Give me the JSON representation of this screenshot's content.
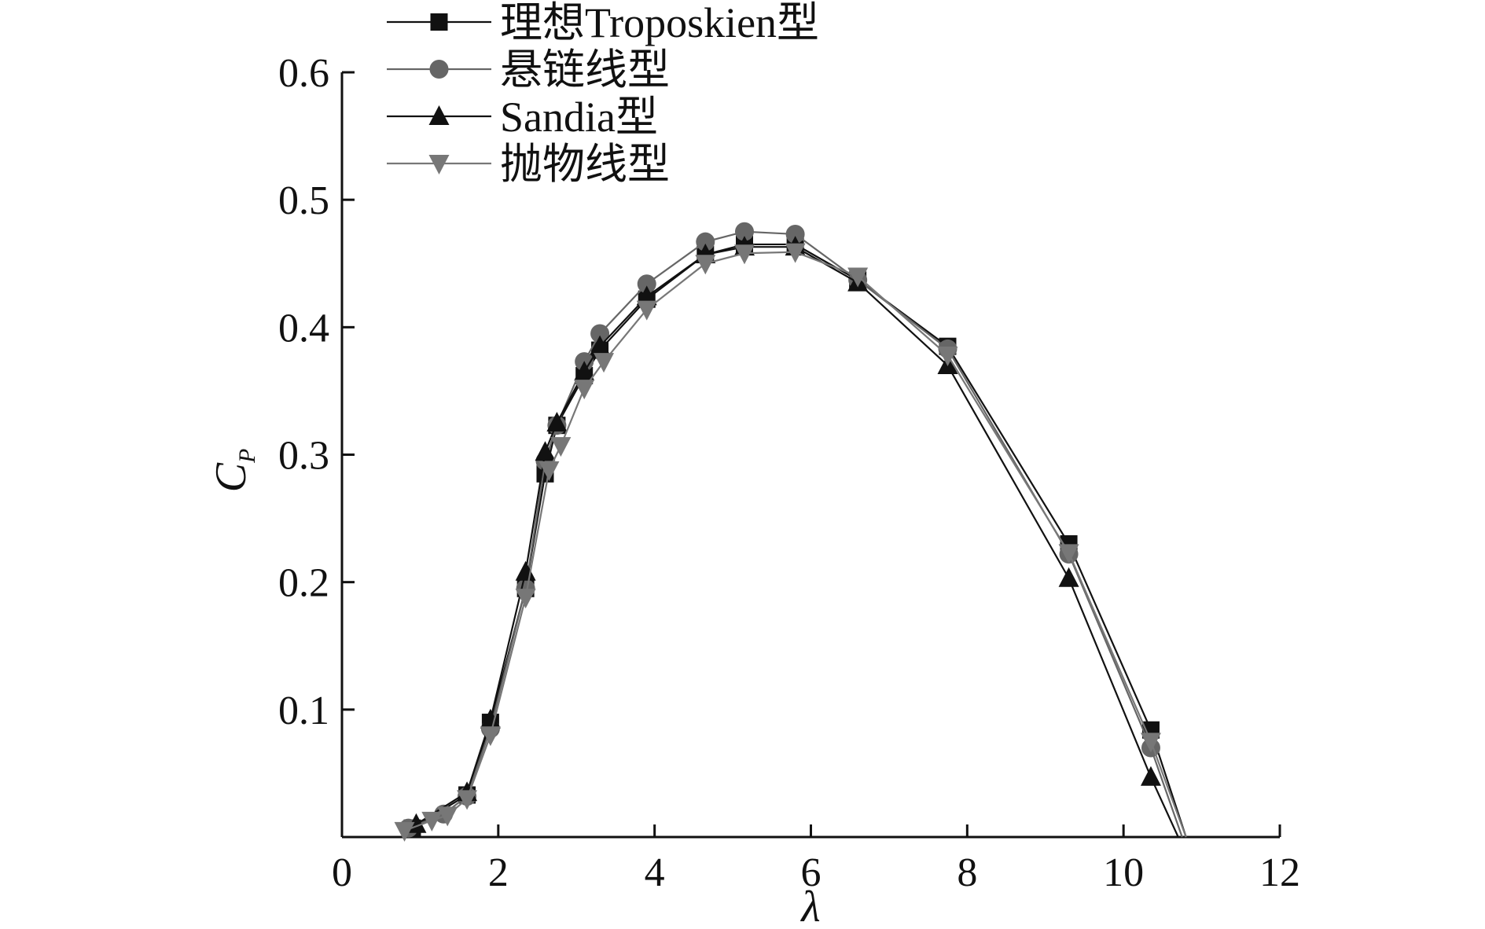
{
  "chart_data": {
    "type": "line",
    "xlabel": "λ",
    "ylabel": "C",
    "ylabel_sub": "P",
    "xlim": [
      0,
      12
    ],
    "ylim": [
      0,
      0.6
    ],
    "xticks": [
      "0",
      "2",
      "4",
      "6",
      "8",
      "10",
      "12"
    ],
    "yticks": [
      "0.1",
      "0.2",
      "0.3",
      "0.4",
      "0.5",
      "0.6"
    ],
    "grid": false,
    "legend_position": "top",
    "series": [
      {
        "name": "理想Troposkien型",
        "marker": "square",
        "color": "#111111",
        "x": [
          0.9,
          1.6,
          1.9,
          2.35,
          2.6,
          2.75,
          3.1,
          3.3,
          3.9,
          4.65,
          5.15,
          5.8,
          6.6,
          7.75,
          9.3,
          10.35,
          10.8
        ],
        "y": [
          0.007,
          0.033,
          0.09,
          0.195,
          0.285,
          0.323,
          0.362,
          0.382,
          0.422,
          0.457,
          0.465,
          0.465,
          0.437,
          0.385,
          0.23,
          0.084,
          0.0
        ]
      },
      {
        "name": "悬链线型",
        "marker": "circle",
        "color": "#666666",
        "x": [
          0.85,
          1.3,
          1.6,
          1.9,
          2.35,
          2.6,
          2.75,
          3.1,
          3.3,
          3.9,
          4.65,
          5.15,
          5.8,
          6.6,
          7.75,
          9.3,
          10.35,
          10.75
        ],
        "y": [
          0.007,
          0.018,
          0.032,
          0.085,
          0.195,
          0.295,
          0.323,
          0.373,
          0.395,
          0.434,
          0.467,
          0.475,
          0.473,
          0.437,
          0.383,
          0.222,
          0.07,
          0.0
        ]
      },
      {
        "name": "Sandia型",
        "marker": "triangle-up",
        "color": "#111111",
        "x": [
          0.95,
          1.6,
          1.9,
          2.35,
          2.6,
          2.75,
          3.1,
          3.3,
          3.9,
          4.65,
          5.15,
          5.8,
          6.6,
          7.75,
          9.3,
          10.35,
          10.7
        ],
        "y": [
          0.01,
          0.035,
          0.092,
          0.208,
          0.302,
          0.325,
          0.365,
          0.385,
          0.424,
          0.457,
          0.463,
          0.463,
          0.435,
          0.37,
          0.203,
          0.047,
          0.0
        ]
      },
      {
        "name": "抛物线型",
        "marker": "triangle-down",
        "color": "#777777",
        "x": [
          0.8,
          1.15,
          1.35,
          1.6,
          1.9,
          2.35,
          2.65,
          2.8,
          3.1,
          3.35,
          3.9,
          4.65,
          5.15,
          5.8,
          6.6,
          7.75,
          9.3,
          10.35,
          10.8
        ],
        "y": [
          0.005,
          0.013,
          0.017,
          0.03,
          0.08,
          0.188,
          0.288,
          0.307,
          0.352,
          0.373,
          0.414,
          0.45,
          0.458,
          0.459,
          0.44,
          0.378,
          0.223,
          0.075,
          0.0
        ]
      }
    ]
  }
}
